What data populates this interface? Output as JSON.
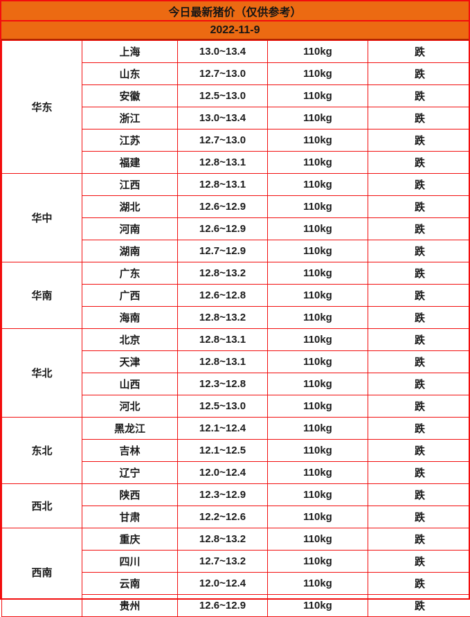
{
  "header": {
    "title": "今日最新猪价（仅供参考）",
    "date": "2022-11-9"
  },
  "colors": {
    "header_bg": "#ec6a12",
    "border_red": "#f20d0d",
    "date_divider_dark": "#b32400",
    "text_dark": "#1a1a1a",
    "status_green": "#2fcb22"
  },
  "table": {
    "regions": [
      {
        "name": "华东",
        "rows": [
          {
            "province": "上海",
            "price": "13.0~13.4",
            "weight": "110kg",
            "status": "跌"
          },
          {
            "province": "山东",
            "price": "12.7~13.0",
            "weight": "110kg",
            "status": "跌"
          },
          {
            "province": "安徽",
            "price": "12.5~13.0",
            "weight": "110kg",
            "status": "跌"
          },
          {
            "province": "浙江",
            "price": "13.0~13.4",
            "weight": "110kg",
            "status": "跌"
          },
          {
            "province": "江苏",
            "price": "12.7~13.0",
            "weight": "110kg",
            "status": "跌"
          },
          {
            "province": "福建",
            "price": "12.8~13.1",
            "weight": "110kg",
            "status": "跌"
          }
        ]
      },
      {
        "name": "华中",
        "rows": [
          {
            "province": "江西",
            "price": "12.8~13.1",
            "weight": "110kg",
            "status": "跌"
          },
          {
            "province": "湖北",
            "price": "12.6~12.9",
            "weight": "110kg",
            "status": "跌"
          },
          {
            "province": "河南",
            "price": "12.6~12.9",
            "weight": "110kg",
            "status": "跌"
          },
          {
            "province": "湖南",
            "price": "12.7~12.9",
            "weight": "110kg",
            "status": "跌"
          }
        ]
      },
      {
        "name": "华南",
        "rows": [
          {
            "province": "广东",
            "price": "12.8~13.2",
            "weight": "110kg",
            "status": "跌"
          },
          {
            "province": "广西",
            "price": "12.6~12.8",
            "weight": "110kg",
            "status": "跌"
          },
          {
            "province": "海南",
            "price": "12.8~13.2",
            "weight": "110kg",
            "status": "跌"
          }
        ]
      },
      {
        "name": "华北",
        "rows": [
          {
            "province": "北京",
            "price": "12.8~13.1",
            "weight": "110kg",
            "status": "跌"
          },
          {
            "province": "天津",
            "price": "12.8~13.1",
            "weight": "110kg",
            "status": "跌"
          },
          {
            "province": "山西",
            "price": "12.3~12.8",
            "weight": "110kg",
            "status": "跌"
          },
          {
            "province": "河北",
            "price": "12.5~13.0",
            "weight": "110kg",
            "status": "跌"
          }
        ]
      },
      {
        "name": "东北",
        "rows": [
          {
            "province": "黑龙江",
            "price": "12.1~12.4",
            "weight": "110kg",
            "status": "跌"
          },
          {
            "province": "吉林",
            "price": "12.1~12.5",
            "weight": "110kg",
            "status": "跌"
          },
          {
            "province": "辽宁",
            "price": "12.0~12.4",
            "weight": "110kg",
            "status": "跌"
          }
        ]
      },
      {
        "name": "西北",
        "rows": [
          {
            "province": "陕西",
            "price": "12.3~12.9",
            "weight": "110kg",
            "status": "跌"
          },
          {
            "province": "甘肃",
            "price": "12.2~12.6",
            "weight": "110kg",
            "status": "跌"
          }
        ]
      },
      {
        "name": "西南",
        "rows": [
          {
            "province": "重庆",
            "price": "12.8~13.2",
            "weight": "110kg",
            "status": "跌"
          },
          {
            "province": "四川",
            "price": "12.7~13.2",
            "weight": "110kg",
            "status": "跌"
          },
          {
            "province": "云南",
            "price": "12.0~12.4",
            "weight": "110kg",
            "status": "跌"
          },
          {
            "province": "贵州",
            "price": "12.6~12.9",
            "weight": "110kg",
            "status": "跌"
          }
        ]
      }
    ]
  },
  "chart_data": {
    "type": "table",
    "title": "今日最新猪价（仅供参考）",
    "date": "2022-11-9",
    "columns": [
      "region",
      "province",
      "price_range",
      "weight",
      "trend"
    ],
    "rows": [
      [
        "华东",
        "上海",
        "13.0~13.4",
        "110kg",
        "跌"
      ],
      [
        "华东",
        "山东",
        "12.7~13.0",
        "110kg",
        "跌"
      ],
      [
        "华东",
        "安徽",
        "12.5~13.0",
        "110kg",
        "跌"
      ],
      [
        "华东",
        "浙江",
        "13.0~13.4",
        "110kg",
        "跌"
      ],
      [
        "华东",
        "江苏",
        "12.7~13.0",
        "110kg",
        "跌"
      ],
      [
        "华东",
        "福建",
        "12.8~13.1",
        "110kg",
        "跌"
      ],
      [
        "华中",
        "江西",
        "12.8~13.1",
        "110kg",
        "跌"
      ],
      [
        "华中",
        "湖北",
        "12.6~12.9",
        "110kg",
        "跌"
      ],
      [
        "华中",
        "河南",
        "12.6~12.9",
        "110kg",
        "跌"
      ],
      [
        "华中",
        "湖南",
        "12.7~12.9",
        "110kg",
        "跌"
      ],
      [
        "华南",
        "广东",
        "12.8~13.2",
        "110kg",
        "跌"
      ],
      [
        "华南",
        "广西",
        "12.6~12.8",
        "110kg",
        "跌"
      ],
      [
        "华南",
        "海南",
        "12.8~13.2",
        "110kg",
        "跌"
      ],
      [
        "华北",
        "北京",
        "12.8~13.1",
        "110kg",
        "跌"
      ],
      [
        "华北",
        "天津",
        "12.8~13.1",
        "110kg",
        "跌"
      ],
      [
        "华北",
        "山西",
        "12.3~12.8",
        "110kg",
        "跌"
      ],
      [
        "华北",
        "河北",
        "12.5~13.0",
        "110kg",
        "跌"
      ],
      [
        "东北",
        "黑龙江",
        "12.1~12.4",
        "110kg",
        "跌"
      ],
      [
        "东北",
        "吉林",
        "12.1~12.5",
        "110kg",
        "跌"
      ],
      [
        "东北",
        "辽宁",
        "12.0~12.4",
        "110kg",
        "跌"
      ],
      [
        "西北",
        "陕西",
        "12.3~12.9",
        "110kg",
        "跌"
      ],
      [
        "西北",
        "甘肃",
        "12.2~12.6",
        "110kg",
        "跌"
      ],
      [
        "西南",
        "重庆",
        "12.8~13.2",
        "110kg",
        "跌"
      ],
      [
        "西南",
        "四川",
        "12.7~13.2",
        "110kg",
        "跌"
      ],
      [
        "西南",
        "云南",
        "12.0~12.4",
        "110kg",
        "跌"
      ],
      [
        "西南",
        "贵州",
        "12.6~12.9",
        "110kg",
        "跌"
      ]
    ]
  }
}
